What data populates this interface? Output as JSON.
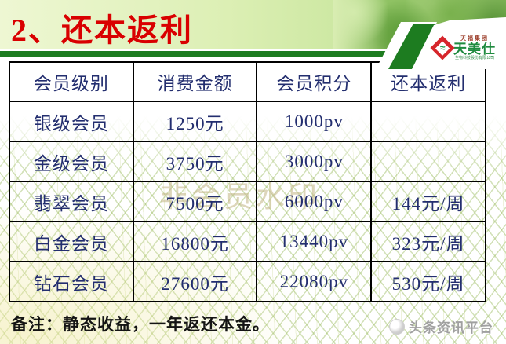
{
  "title": "2、还本返利",
  "logo": {
    "group": "天福集团",
    "brand": "天美仕",
    "subtitle": "生物科技股份有限公司",
    "wave_glyph": "≈"
  },
  "table": {
    "headers": [
      "会员级别",
      "消费金额",
      "会员积分",
      "还本返利"
    ],
    "rows": [
      [
        "银级会员",
        "1250元",
        "1000pv",
        ""
      ],
      [
        "金级会员",
        "3750元",
        "3000pv",
        ""
      ],
      [
        "翡翠会员",
        "7500元",
        "6000pv",
        "144元/周"
      ],
      [
        "白金会员",
        "16800元",
        "13440pv",
        "323元/周"
      ],
      [
        "钻石会员",
        "27600元",
        "22080pv",
        "530元/周"
      ]
    ]
  },
  "watermark_center": "非会员水印",
  "note": "备注：静态收益，一年返还本金。",
  "footer_badge": "头条资讯平台",
  "colors": {
    "title_red": "#d90000",
    "table_text": "#232e6f",
    "bar_green": "#1d7c20",
    "brand_green": "#1e8a3e",
    "brand_red": "#d6252b"
  }
}
